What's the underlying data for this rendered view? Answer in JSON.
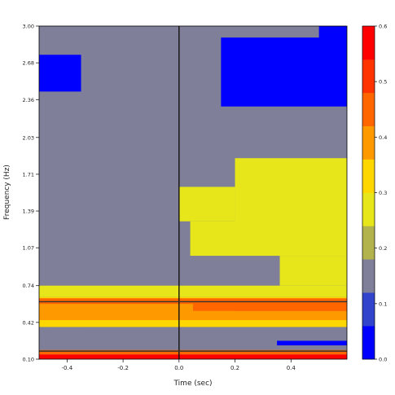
{
  "chart_data": {
    "type": "heatmap",
    "title": "",
    "xlabel": "Time (sec)",
    "ylabel": "Frequency (Hz)",
    "x_range": [
      -0.5,
      0.6
    ],
    "y_range": [
      0.1,
      3.0
    ],
    "x_ticks": [
      -0.4,
      -0.2,
      0.0,
      0.2,
      0.4
    ],
    "x_tick_labels": [
      "-0.4",
      "-0.2",
      "0.0",
      "0.2",
      "0.4"
    ],
    "y_ticks": [
      0.1,
      0.42,
      0.74,
      1.07,
      1.39,
      1.71,
      2.03,
      2.36,
      2.68,
      3.0
    ],
    "y_tick_labels": [
      "0.10",
      "0.42",
      "0.74",
      "1.07",
      "1.39",
      "1.71",
      "2.03",
      "2.36",
      "2.68",
      "3.00"
    ],
    "vertical_line_x": 0.0,
    "horizontal_lines_y": [
      0.6,
      0.17
    ],
    "colorbar": {
      "min": 0.0,
      "max": 0.6,
      "ticks": [
        0.0,
        0.1,
        0.2,
        0.3,
        0.4,
        0.5,
        0.6
      ],
      "tick_labels": [
        "0.0",
        "0.1",
        "0.2",
        "0.3",
        "0.4",
        "0.5",
        "0.6"
      ],
      "colors": [
        "#0000ff",
        "#3344cc",
        "#7f7f99",
        "#b3b34d",
        "#e6e61a",
        "#ffd700",
        "#ff9900",
        "#ff6600",
        "#ff3300",
        "#ff0000"
      ]
    },
    "cells": [
      {
        "x": [
          -0.5,
          0.6
        ],
        "y": [
          0.1,
          3.0
        ],
        "value": 0.12
      },
      {
        "x": [
          -0.5,
          -0.35
        ],
        "y": [
          2.43,
          2.75
        ],
        "value": 0.02
      },
      {
        "x": [
          0.15,
          0.6
        ],
        "y": [
          2.3,
          2.9
        ],
        "value": 0.03
      },
      {
        "x": [
          0.5,
          0.6
        ],
        "y": [
          2.85,
          3.0
        ],
        "value": 0.03
      },
      {
        "x": [
          -0.26,
          -0.04
        ],
        "y": [
          2.3,
          3.0
        ],
        "value": 0.17
      },
      {
        "x": [
          -0.24,
          -0.04
        ],
        "y": [
          1.05,
          2.3
        ],
        "value": 0.17
      },
      {
        "x": [
          -0.28,
          -0.04
        ],
        "y": [
          0.83,
          1.05
        ],
        "value": 0.17
      },
      {
        "x": [
          -0.04,
          0.0
        ],
        "y": [
          0.83,
          3.0
        ],
        "value": 0.17
      },
      {
        "x": [
          0.0,
          0.05
        ],
        "y": [
          2.7,
          3.0
        ],
        "value": 0.17
      },
      {
        "x": [
          -0.44,
          0.0
        ],
        "y": [
          1.75,
          2.05
        ],
        "value": 0.17
      },
      {
        "x": [
          -0.38,
          -0.28
        ],
        "y": [
          1.2,
          1.75
        ],
        "value": 0.17
      },
      {
        "x": [
          0.0,
          0.6
        ],
        "y": [
          1.85,
          2.05
        ],
        "value": 0.17
      },
      {
        "x": [
          0.0,
          0.2
        ],
        "y": [
          1.6,
          1.85
        ],
        "value": 0.17
      },
      {
        "x": [
          0.0,
          0.6
        ],
        "y": [
          0.74,
          1.0
        ],
        "value": 0.17
      },
      {
        "x": [
          -0.5,
          0.0
        ],
        "y": [
          0.74,
          0.83
        ],
        "value": 0.17
      },
      {
        "x": [
          0.2,
          0.6
        ],
        "y": [
          1.25,
          1.85
        ],
        "value": 0.25
      },
      {
        "x": [
          0.0,
          0.2
        ],
        "y": [
          1.3,
          1.6
        ],
        "value": 0.25
      },
      {
        "x": [
          0.04,
          0.6
        ],
        "y": [
          1.0,
          1.3
        ],
        "value": 0.25
      },
      {
        "x": [
          0.36,
          0.6
        ],
        "y": [
          0.74,
          1.0
        ],
        "value": 0.24
      },
      {
        "x": [
          -0.5,
          0.6
        ],
        "y": [
          0.64,
          0.74
        ],
        "value": 0.27
      },
      {
        "x": [
          -0.5,
          0.6
        ],
        "y": [
          0.38,
          0.64
        ],
        "value": 0.33
      },
      {
        "x": [
          -0.5,
          0.6
        ],
        "y": [
          0.44,
          0.6
        ],
        "value": 0.37
      },
      {
        "x": [
          -0.5,
          0.6
        ],
        "y": [
          0.58,
          0.63
        ],
        "value": 0.42
      },
      {
        "x": [
          -0.5,
          0.6
        ],
        "y": [
          0.5,
          0.58
        ],
        "value": 0.36
      },
      {
        "x": [
          0.05,
          0.6
        ],
        "y": [
          0.52,
          0.6
        ],
        "value": 0.44
      },
      {
        "x": [
          0.2,
          0.6
        ],
        "y": [
          0.52,
          0.59
        ],
        "value": 0.47
      },
      {
        "x": [
          -0.5,
          0.6
        ],
        "y": [
          0.3,
          0.38
        ],
        "value": 0.14
      },
      {
        "x": [
          -0.45,
          -0.35
        ],
        "y": [
          0.33,
          0.36
        ],
        "value": 0.17
      },
      {
        "x": [
          -0.5,
          0.6
        ],
        "y": [
          0.18,
          0.3
        ],
        "value": 0.12
      },
      {
        "x": [
          0.35,
          0.6
        ],
        "y": [
          0.22,
          0.26
        ],
        "value": 0.03
      },
      {
        "x": [
          -0.5,
          0.6
        ],
        "y": [
          0.14,
          0.18
        ],
        "value": 0.45
      },
      {
        "x": [
          -0.5,
          0.6
        ],
        "y": [
          0.1,
          0.14
        ],
        "value": 0.58
      }
    ]
  }
}
